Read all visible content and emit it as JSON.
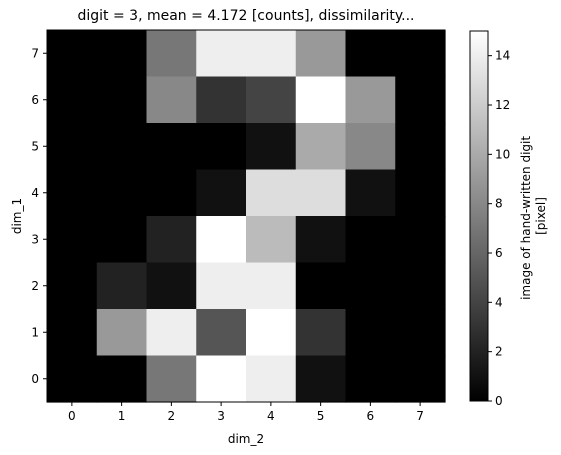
{
  "chart_data": {
    "type": "heatmap",
    "title": "digit = 3, mean = 4.172 [counts], dissimilarity...",
    "xlabel": "dim_2",
    "ylabel": "dim_1",
    "x_ticks": [
      "0",
      "1",
      "2",
      "3",
      "4",
      "5",
      "6",
      "7"
    ],
    "y_ticks": [
      "0",
      "1",
      "2",
      "3",
      "4",
      "5",
      "6",
      "7"
    ],
    "colormap": "gray",
    "value_range": [
      0,
      15
    ],
    "rows_from_top_dim1_7_to_0": [
      [
        0,
        0,
        7,
        14,
        14,
        9,
        0,
        0
      ],
      [
        0,
        0,
        8,
        3,
        4,
        15,
        9,
        0
      ],
      [
        0,
        0,
        0,
        0,
        1,
        10,
        8,
        0
      ],
      [
        0,
        0,
        0,
        1,
        13,
        13,
        1,
        0
      ],
      [
        0,
        0,
        2,
        16,
        11,
        1,
        0,
        0
      ],
      [
        0,
        2,
        1,
        14,
        14,
        0,
        0,
        0
      ],
      [
        0,
        9,
        14,
        5,
        16,
        3,
        0,
        0
      ],
      [
        0,
        0,
        7,
        16,
        14,
        1,
        0,
        0
      ]
    ],
    "colorbar": {
      "label_line1": "image of hand-written digit",
      "label_line2": "[pixel]",
      "ticks": [
        "0",
        "2",
        "4",
        "6",
        "8",
        "10",
        "12",
        "14"
      ],
      "tick_values": [
        0,
        2,
        4,
        6,
        8,
        10,
        12,
        14
      ]
    }
  }
}
